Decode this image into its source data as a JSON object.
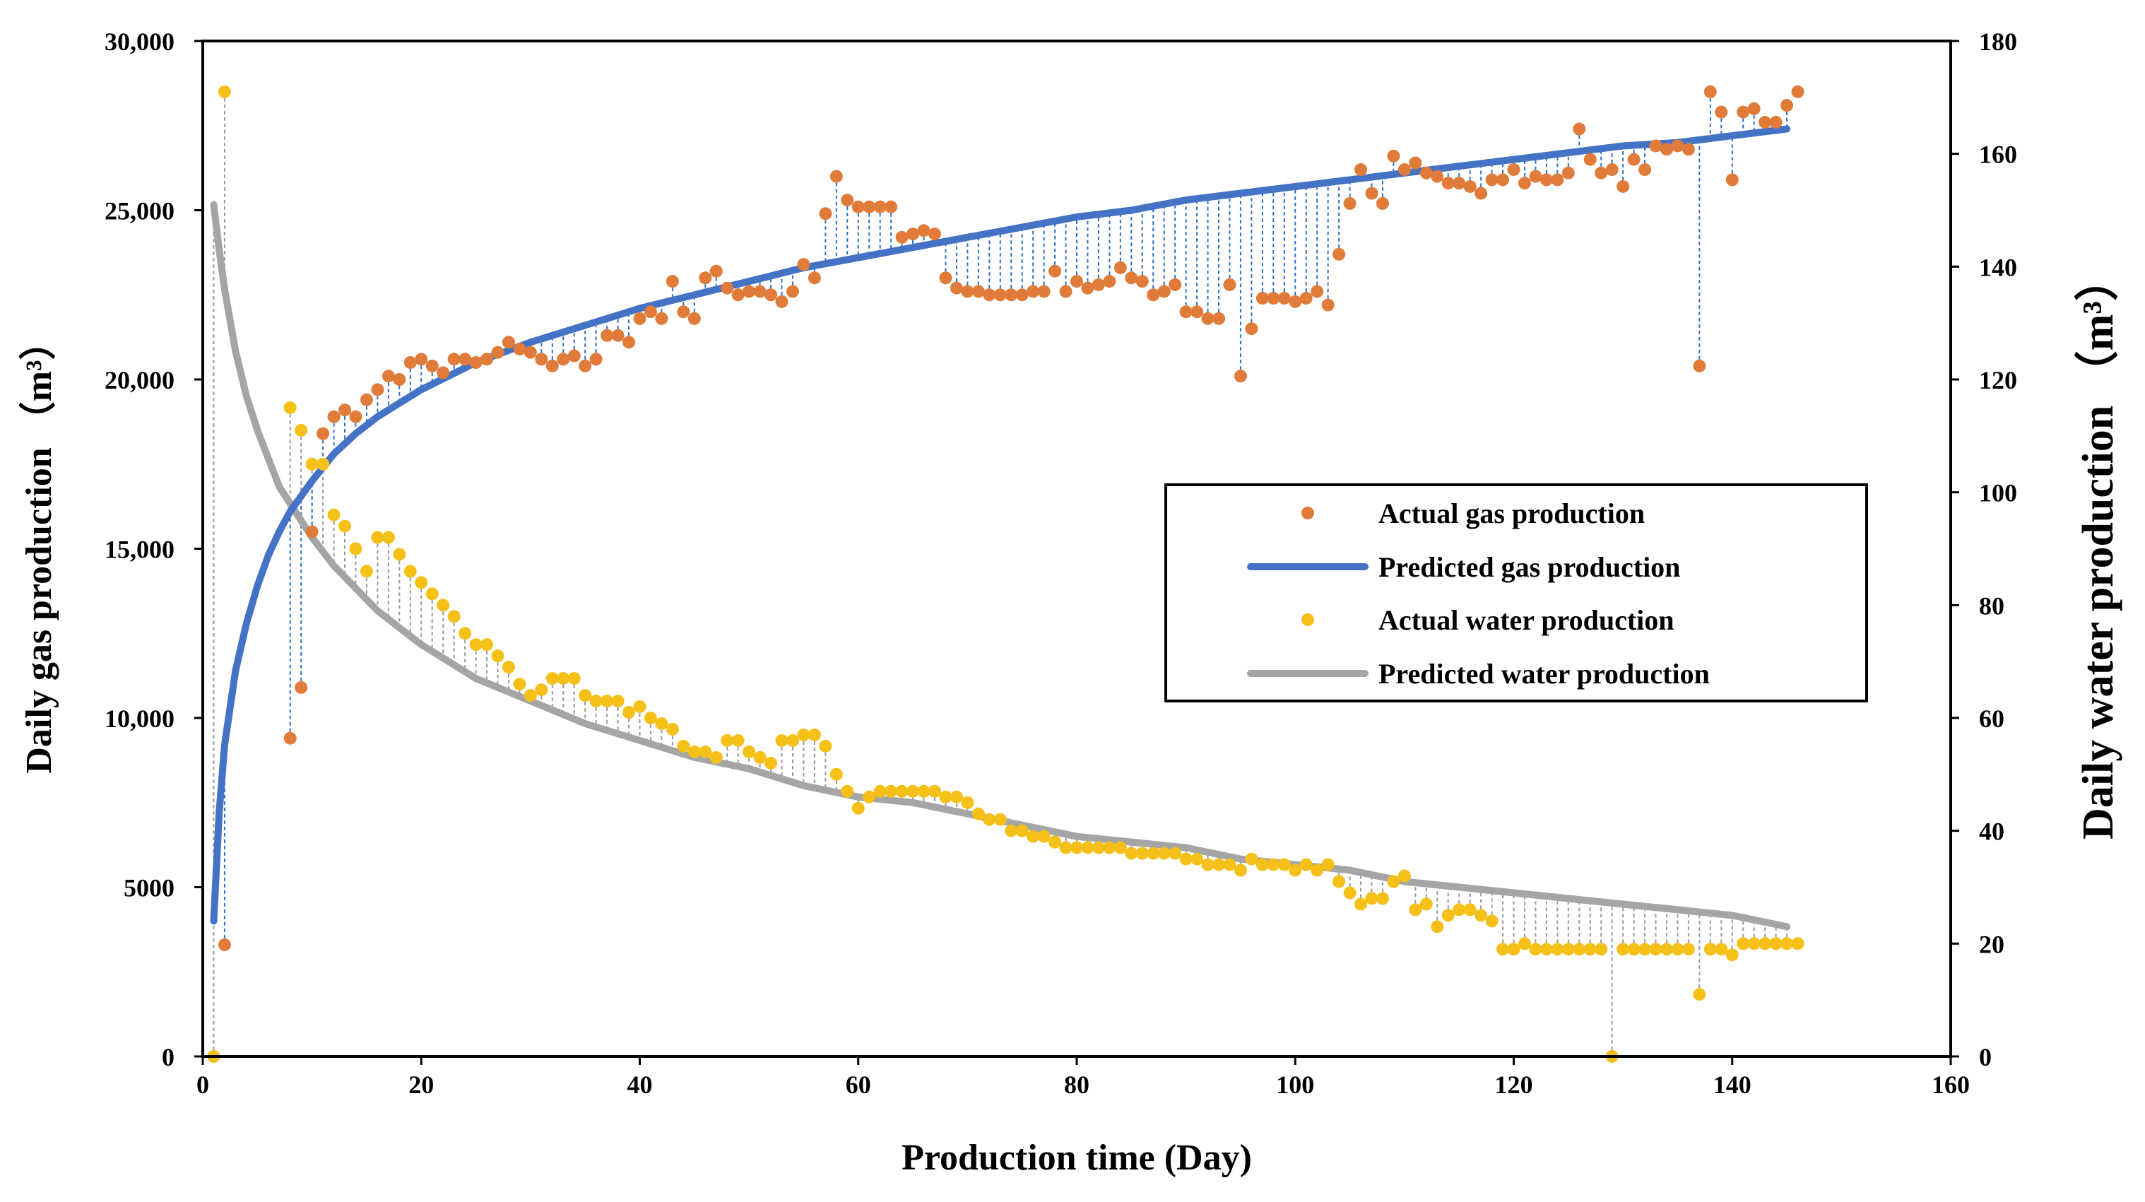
{
  "chart_data": {
    "type": "line",
    "title": "",
    "xlabel": "Production time (Day)",
    "ylabel": "Daily gas production （m³）",
    "y2label": "Daily water production （m³）",
    "xlim": [
      0,
      160
    ],
    "ylim": [
      0,
      30000
    ],
    "y2lim": [
      0,
      180
    ],
    "x_ticks": [
      0,
      20,
      40,
      60,
      80,
      100,
      120,
      140,
      160
    ],
    "x_tick_labels": [
      "0",
      "20",
      "40",
      "60",
      "80",
      "100",
      "120",
      "140",
      "160"
    ],
    "y_ticks": [
      0,
      5000,
      10000,
      15000,
      20000,
      25000,
      30000
    ],
    "y_tick_labels": [
      "0",
      "5000",
      "10,000",
      "15,000",
      "20,000",
      "25,000",
      "30,000"
    ],
    "y2_ticks": [
      0,
      20,
      40,
      60,
      80,
      100,
      120,
      140,
      160,
      180
    ],
    "y2_tick_labels": [
      "0",
      "20",
      "40",
      "60",
      "80",
      "100",
      "120",
      "140",
      "160",
      "180"
    ],
    "legend": {
      "placement": "center-right",
      "entries": [
        {
          "label": "Actual gas production",
          "marker": "dot",
          "color": "#E07B39"
        },
        {
          "label": "Predicted gas production",
          "marker": "line",
          "color": "#4472C4"
        },
        {
          "label": "Actual water production",
          "marker": "dot",
          "color": "#F5C018"
        },
        {
          "label": "Predicted water production",
          "marker": "line",
          "color": "#A5A5A5"
        }
      ]
    },
    "series": [
      {
        "name": "Actual gas production",
        "axis": "left",
        "style": "scatter",
        "color": "#E07B39",
        "x": [
          2,
          8,
          9,
          10,
          11,
          12,
          13,
          14,
          15,
          16,
          17,
          18,
          19,
          20,
          21,
          22,
          23,
          24,
          25,
          26,
          27,
          28,
          29,
          30,
          31,
          32,
          33,
          34,
          35,
          36,
          37,
          38,
          39,
          40,
          41,
          42,
          43,
          44,
          45,
          46,
          47,
          48,
          49,
          50,
          51,
          52,
          53,
          54,
          55,
          56,
          57,
          58,
          59,
          60,
          61,
          62,
          63,
          64,
          65,
          66,
          67,
          68,
          69,
          70,
          71,
          72,
          73,
          74,
          75,
          76,
          77,
          78,
          79,
          80,
          81,
          82,
          83,
          84,
          85,
          86,
          87,
          88,
          89,
          90,
          91,
          92,
          93,
          94,
          95,
          96,
          97,
          98,
          99,
          100,
          101,
          102,
          103,
          104,
          105,
          106,
          107,
          108,
          109,
          110,
          111,
          112,
          113,
          114,
          115,
          116,
          117,
          118,
          119,
          120,
          121,
          122,
          123,
          124,
          125,
          126,
          127,
          128,
          129,
          130,
          131,
          132,
          133,
          134,
          135,
          136,
          137,
          138,
          139,
          140,
          141,
          142,
          143,
          144,
          145,
          146
        ],
        "y": [
          3300,
          9400,
          10900,
          15500,
          18400,
          18900,
          19100,
          18900,
          19400,
          19700,
          20100,
          20000,
          20500,
          20600,
          20400,
          20200,
          20600,
          20600,
          20500,
          20600,
          20800,
          21100,
          20900,
          20800,
          20600,
          20400,
          20600,
          20700,
          20400,
          20600,
          21300,
          21300,
          21100,
          21800,
          22000,
          21800,
          22900,
          22000,
          21800,
          23000,
          23200,
          22700,
          22500,
          22600,
          22600,
          22500,
          22300,
          22600,
          23400,
          23000,
          24900,
          26000,
          25300,
          25100,
          25100,
          25100,
          25100,
          24200,
          24300,
          24400,
          24300,
          23000,
          22700,
          22600,
          22600,
          22500,
          22500,
          22500,
          22500,
          22600,
          22600,
          23200,
          22600,
          22900,
          22700,
          22800,
          22900,
          23300,
          23000,
          22900,
          22500,
          22600,
          22800,
          22000,
          22000,
          21800,
          21800,
          22800,
          20100,
          21500,
          22400,
          22400,
          22400,
          22300,
          22400,
          22600,
          22200,
          23700,
          25200,
          26200,
          25500,
          25200,
          26600,
          26200,
          26400,
          26100,
          26000,
          25800,
          25800,
          25700,
          25500,
          25900,
          25900,
          26200,
          25800,
          26000,
          25900,
          25900,
          26100,
          27400,
          26500,
          26100,
          26200,
          25700,
          26500,
          26200,
          26900,
          26800,
          26900,
          26800,
          20400,
          28500,
          27900,
          25900,
          27900,
          28000,
          27600,
          27600,
          28100,
          28500
        ]
      },
      {
        "name": "Predicted gas production",
        "axis": "left",
        "style": "line",
        "color": "#4472C4",
        "x": [
          1,
          1.5,
          2,
          3,
          4,
          5,
          6,
          7,
          8,
          10,
          12,
          14,
          16,
          18,
          20,
          25,
          30,
          35,
          40,
          45,
          50,
          55,
          60,
          65,
          70,
          75,
          80,
          85,
          90,
          95,
          100,
          105,
          110,
          115,
          120,
          125,
          130,
          135,
          140,
          145
        ],
        "y": [
          4000,
          7200,
          9200,
          11400,
          12800,
          13900,
          14800,
          15500,
          16100,
          17000,
          17800,
          18400,
          18900,
          19300,
          19700,
          20500,
          21100,
          21600,
          22100,
          22500,
          22900,
          23300,
          23600,
          23900,
          24200,
          24500,
          24800,
          25000,
          25300,
          25500,
          25700,
          25900,
          26100,
          26300,
          26500,
          26700,
          26900,
          27000,
          27200,
          27400
        ]
      },
      {
        "name": "Actual water production",
        "axis": "right",
        "style": "scatter",
        "color": "#F5C018",
        "x": [
          1,
          2,
          8,
          9,
          10,
          11,
          12,
          13,
          14,
          15,
          16,
          17,
          18,
          19,
          20,
          21,
          22,
          23,
          24,
          25,
          26,
          27,
          28,
          29,
          30,
          31,
          32,
          33,
          34,
          35,
          36,
          37,
          38,
          39,
          40,
          41,
          42,
          43,
          44,
          45,
          46,
          47,
          48,
          49,
          50,
          51,
          52,
          53,
          54,
          55,
          56,
          57,
          58,
          59,
          60,
          61,
          62,
          63,
          64,
          65,
          66,
          67,
          68,
          69,
          70,
          71,
          72,
          73,
          74,
          75,
          76,
          77,
          78,
          79,
          80,
          81,
          82,
          83,
          84,
          85,
          86,
          87,
          88,
          89,
          90,
          91,
          92,
          93,
          94,
          95,
          96,
          97,
          98,
          99,
          100,
          101,
          102,
          103,
          104,
          105,
          106,
          107,
          108,
          109,
          110,
          111,
          112,
          113,
          114,
          115,
          116,
          117,
          118,
          119,
          120,
          121,
          122,
          123,
          124,
          125,
          126,
          127,
          128,
          129,
          130,
          131,
          132,
          133,
          134,
          135,
          136,
          137,
          138,
          139,
          140,
          141,
          142,
          143,
          144,
          145,
          146
        ],
        "y": [
          0,
          171,
          115,
          111,
          105,
          105,
          96,
          94,
          90,
          86,
          92,
          92,
          89,
          86,
          84,
          82,
          80,
          78,
          75,
          73,
          73,
          71,
          69,
          66,
          64,
          65,
          67,
          67,
          67,
          64,
          63,
          63,
          63,
          61,
          62,
          60,
          59,
          58,
          55,
          54,
          54,
          53,
          56,
          56,
          54,
          53,
          52,
          56,
          56,
          57,
          57,
          55,
          50,
          47,
          44,
          46,
          47,
          47,
          47,
          47,
          47,
          47,
          46,
          46,
          45,
          43,
          42,
          42,
          40,
          40,
          39,
          39,
          38,
          37,
          37,
          37,
          37,
          37,
          37,
          36,
          36,
          36,
          36,
          36,
          35,
          35,
          34,
          34,
          34,
          33,
          35,
          34,
          34,
          34,
          33,
          34,
          33,
          34,
          31,
          29,
          27,
          28,
          28,
          31,
          32,
          26,
          27,
          23,
          25,
          26,
          26,
          25,
          24,
          19,
          19,
          20,
          19,
          19,
          19,
          19,
          19,
          19,
          19,
          0,
          19,
          19,
          19,
          19,
          19,
          19,
          19,
          11,
          19,
          19,
          18,
          20,
          20,
          20,
          20,
          20,
          20
        ]
      },
      {
        "name": "Predicted water production",
        "axis": "right",
        "style": "line",
        "color": "#A5A5A5",
        "x": [
          1,
          1.5,
          2,
          3,
          4,
          5,
          6,
          7,
          8,
          10,
          12,
          14,
          16,
          18,
          20,
          25,
          30,
          35,
          40,
          45,
          50,
          55,
          60,
          65,
          70,
          75,
          80,
          85,
          90,
          95,
          100,
          105,
          110,
          115,
          120,
          125,
          130,
          135,
          140,
          145
        ],
        "y": [
          151,
          143,
          136,
          125,
          117,
          111,
          106,
          101,
          98,
          92,
          87,
          83,
          79,
          76,
          73,
          67,
          63,
          59,
          56,
          53,
          51,
          48,
          46,
          45,
          43,
          41,
          39,
          38,
          37,
          35,
          34,
          33,
          31,
          30,
          29,
          28,
          27,
          26,
          25,
          23
        ]
      }
    ]
  }
}
